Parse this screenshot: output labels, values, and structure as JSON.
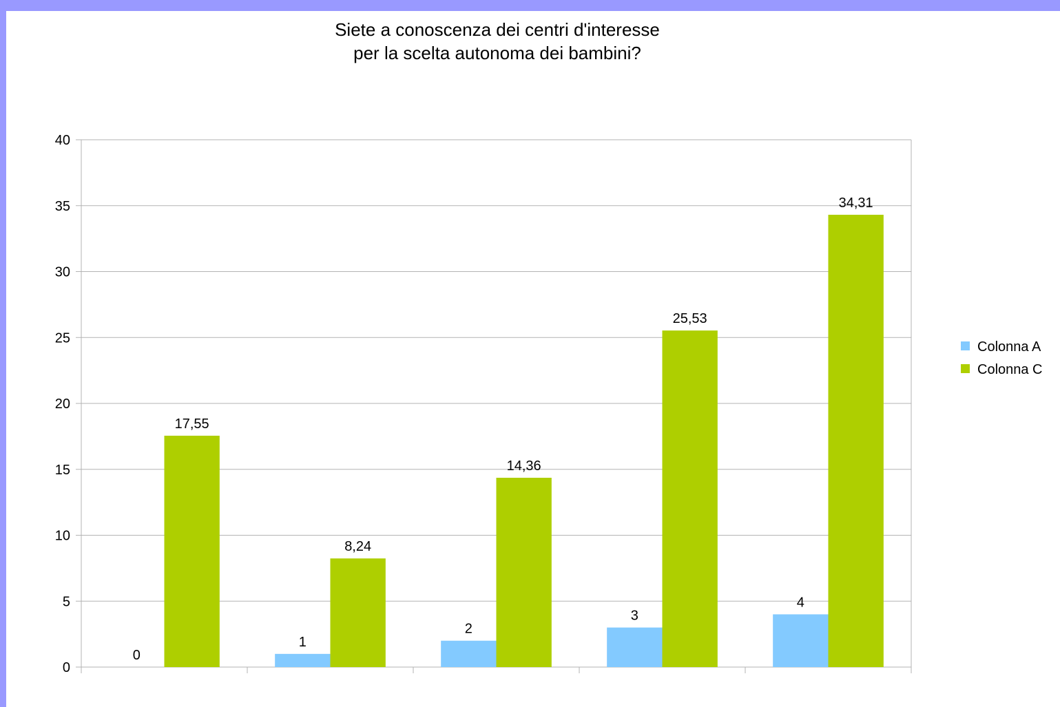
{
  "chart_data": {
    "type": "bar",
    "title": "Siete a conoscenza dei centri d'interesse\n per la scelta autonoma dei bambini?",
    "xlabel": "",
    "ylabel": "",
    "ylim": [
      0,
      40
    ],
    "yticks": [
      0,
      5,
      10,
      15,
      20,
      25,
      30,
      35,
      40
    ],
    "ytick_labels": [
      "0",
      "5",
      "10",
      "15",
      "20",
      "25",
      "30",
      "35",
      "40"
    ],
    "categories": [
      "",
      "",
      "",
      "",
      ""
    ],
    "grid": true,
    "legend_position": "right",
    "series": [
      {
        "name": "Colonna A",
        "color": "#83caff",
        "values": [
          0,
          1,
          2,
          3,
          4
        ],
        "labels": [
          "0",
          "1",
          "2",
          "3",
          "4"
        ]
      },
      {
        "name": "Colonna C",
        "color": "#aecf00",
        "values": [
          17.55,
          8.24,
          14.36,
          25.53,
          34.31
        ],
        "labels": [
          "17,55",
          "8,24",
          "14,36",
          "25,53",
          "34,31"
        ]
      }
    ]
  }
}
